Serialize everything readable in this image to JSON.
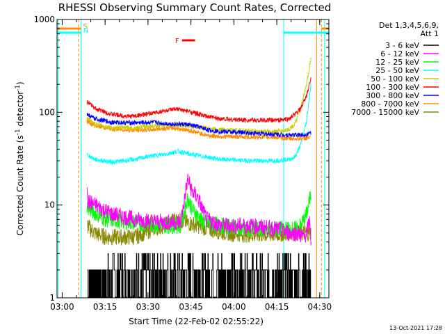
{
  "chart_data": {
    "type": "line",
    "title": "RHESSI Observing Summary Count Rates, Corrected",
    "xlabel": "Start Time (22-Feb-02 02:55:22)",
    "ylabel_main": "Corrected Count Rate (s",
    "ylabel_sup1": "-1",
    "ylabel_mid": " detector",
    "ylabel_sup2": "-1",
    "ylabel_end": ")",
    "y_scale": "log",
    "ylim": [
      1,
      1000
    ],
    "xlim_minutes": [
      2.8,
      97.8
    ],
    "x_origin": "02:55:22",
    "x_ticks": [
      {
        "label": "03:00",
        "t": 4.6
      },
      {
        "label": "03:15",
        "t": 19.6
      },
      {
        "label": "03:30",
        "t": 34.6
      },
      {
        "label": "03:45",
        "t": 49.6
      },
      {
        "label": "04:00",
        "t": 64.6
      },
      {
        "label": "04:15",
        "t": 79.6
      },
      {
        "label": "04:30",
        "t": 94.6
      }
    ],
    "y_ticks": [
      {
        "label": "1",
        "v": 1
      },
      {
        "label": "10",
        "v": 10
      },
      {
        "label": "100",
        "v": 100
      },
      {
        "label": "1000",
        "v": 1000
      }
    ],
    "legend_header": [
      "Det 1,3,4,5,6,9,",
      "Att 1"
    ],
    "series": [
      {
        "name": "3 - 6 keV",
        "color": "#000000",
        "points": [
          [
            13.4,
            1.5
          ],
          [
            20,
            2
          ],
          [
            30,
            2
          ],
          [
            40,
            2
          ],
          [
            48,
            3
          ],
          [
            55,
            2
          ],
          [
            70,
            2
          ],
          [
            80,
            2
          ],
          [
            86,
            2
          ],
          [
            90,
            2.5
          ],
          [
            91.5,
            3
          ]
        ]
      },
      {
        "name": "6 - 12 keV",
        "color": "#ff00ff",
        "points": [
          [
            13.3,
            18
          ],
          [
            13.6,
            11
          ],
          [
            16,
            10
          ],
          [
            22,
            8
          ],
          [
            30,
            7
          ],
          [
            40,
            6.5
          ],
          [
            46,
            6.5
          ],
          [
            48.5,
            19
          ],
          [
            50,
            14
          ],
          [
            52,
            12
          ],
          [
            55,
            7
          ],
          [
            60,
            6
          ],
          [
            70,
            6
          ],
          [
            80,
            5.5
          ],
          [
            84,
            5
          ],
          [
            87,
            5
          ],
          [
            89,
            4.5
          ],
          [
            90,
            5
          ],
          [
            91.2,
            7
          ],
          [
            91.6,
            3.5
          ]
        ]
      },
      {
        "name": "12 - 25 keV",
        "color": "#00ff00",
        "points": [
          [
            13.3,
            10
          ],
          [
            14,
            9
          ],
          [
            20,
            7
          ],
          [
            30,
            6.5
          ],
          [
            40,
            6
          ],
          [
            46,
            6
          ],
          [
            48.5,
            12
          ],
          [
            50,
            9
          ],
          [
            54,
            6.5
          ],
          [
            60,
            6
          ],
          [
            70,
            5.5
          ],
          [
            80,
            5.5
          ],
          [
            86,
            5.5
          ],
          [
            88,
            6
          ],
          [
            90,
            8
          ],
          [
            91.5,
            13
          ]
        ]
      },
      {
        "name": "25 - 50 keV",
        "color": "#00ffff",
        "points": [
          [
            13.3,
            35
          ],
          [
            16,
            31
          ],
          [
            22,
            29
          ],
          [
            30,
            31
          ],
          [
            36,
            34
          ],
          [
            40,
            35
          ],
          [
            45,
            38
          ],
          [
            50,
            35
          ],
          [
            55,
            33
          ],
          [
            60,
            31
          ],
          [
            70,
            30
          ],
          [
            78,
            30
          ],
          [
            84,
            31
          ],
          [
            86,
            33
          ],
          [
            88,
            45
          ],
          [
            90,
            80
          ],
          [
            91.5,
            200
          ]
        ]
      },
      {
        "name": "50 - 100 keV",
        "color": "#cccc00",
        "points": [
          [
            13.3,
            85
          ],
          [
            16,
            75
          ],
          [
            22,
            68
          ],
          [
            30,
            68
          ],
          [
            36,
            71
          ],
          [
            42,
            73
          ],
          [
            48,
            72
          ],
          [
            54,
            68
          ],
          [
            60,
            65
          ],
          [
            70,
            63
          ],
          [
            78,
            62
          ],
          [
            82,
            63
          ],
          [
            84,
            66
          ],
          [
            86,
            75
          ],
          [
            88,
            110
          ],
          [
            90,
            200
          ],
          [
            91.5,
            380
          ]
        ]
      },
      {
        "name": "100 - 300 keV",
        "color": "#ff0000",
        "points": [
          [
            13.3,
            130
          ],
          [
            16,
            110
          ],
          [
            22,
            95
          ],
          [
            28,
            90
          ],
          [
            34,
            95
          ],
          [
            40,
            103
          ],
          [
            45,
            108
          ],
          [
            50,
            100
          ],
          [
            55,
            90
          ],
          [
            60,
            85
          ],
          [
            66,
            83
          ],
          [
            72,
            82
          ],
          [
            78,
            82
          ],
          [
            82,
            83
          ],
          [
            84,
            85
          ],
          [
            86,
            95
          ],
          [
            88,
            110
          ],
          [
            90,
            150
          ],
          [
            91.5,
            230
          ]
        ]
      },
      {
        "name": "300 - 800 keV",
        "color": "#0000ff",
        "points": [
          [
            13.3,
            95
          ],
          [
            16,
            85
          ],
          [
            22,
            78
          ],
          [
            30,
            77
          ],
          [
            36,
            78
          ],
          [
            42,
            75
          ],
          [
            48,
            74
          ],
          [
            52,
            70
          ],
          [
            56,
            64
          ],
          [
            60,
            62
          ],
          [
            70,
            60
          ],
          [
            78,
            58
          ],
          [
            84,
            57
          ],
          [
            88,
            57
          ],
          [
            90,
            58
          ],
          [
            91.5,
            60
          ]
        ]
      },
      {
        "name": "800 - 7000 keV",
        "color": "#ff8800",
        "points": [
          [
            13.3,
            80
          ],
          [
            16,
            72
          ],
          [
            22,
            66
          ],
          [
            30,
            64
          ],
          [
            36,
            65
          ],
          [
            42,
            68
          ],
          [
            48,
            65
          ],
          [
            52,
            60
          ],
          [
            56,
            56
          ],
          [
            60,
            55
          ],
          [
            70,
            54
          ],
          [
            78,
            54
          ],
          [
            84,
            52
          ],
          [
            88,
            52
          ],
          [
            91.5,
            53
          ]
        ]
      },
      {
        "name": "7000 - 15000 keV",
        "color": "#888800",
        "points": [
          [
            13.3,
            6
          ],
          [
            16,
            5
          ],
          [
            20,
            4.5
          ],
          [
            26,
            4.5
          ],
          [
            30,
            4.5
          ],
          [
            36,
            5.5
          ],
          [
            40,
            6
          ],
          [
            44,
            7
          ],
          [
            48,
            6.5
          ],
          [
            52,
            6
          ],
          [
            56,
            5.5
          ],
          [
            62,
            5
          ],
          [
            70,
            4.8
          ],
          [
            78,
            4.8
          ],
          [
            84,
            5
          ],
          [
            88,
            5
          ],
          [
            91.5,
            5
          ]
        ]
      }
    ],
    "flags": [
      {
        "label": "S",
        "color": "#ff8800",
        "segments": [
          [
            2.8,
            11.2
          ],
          [
            95.2,
            97.8
          ]
        ]
      },
      {
        "label": "N",
        "color": "#00ffff",
        "segments": [
          [
            2.8,
            11.2
          ],
          [
            82,
            97.8
          ]
        ]
      },
      {
        "label": "F",
        "color": "#ff0000",
        "segments": [
          [
            46.5,
            51
          ]
        ]
      }
    ],
    "vlines": [
      {
        "t": 3.2,
        "color": "#00ffff",
        "dash": false
      },
      {
        "t": 11.2,
        "color": "#00ffff",
        "dash": false
      },
      {
        "t": 10.3,
        "color": "#ff8800",
        "dash": true
      },
      {
        "t": 82,
        "color": "#00ffff",
        "dash": false
      },
      {
        "t": 93.5,
        "color": "#ff8800",
        "dash": false
      },
      {
        "t": 95.2,
        "color": "#ff8800",
        "dash": true
      },
      {
        "t": 96.3,
        "color": "#00ffff",
        "dash": false
      }
    ]
  },
  "timestamp": "13-Oct-2021 17:28"
}
